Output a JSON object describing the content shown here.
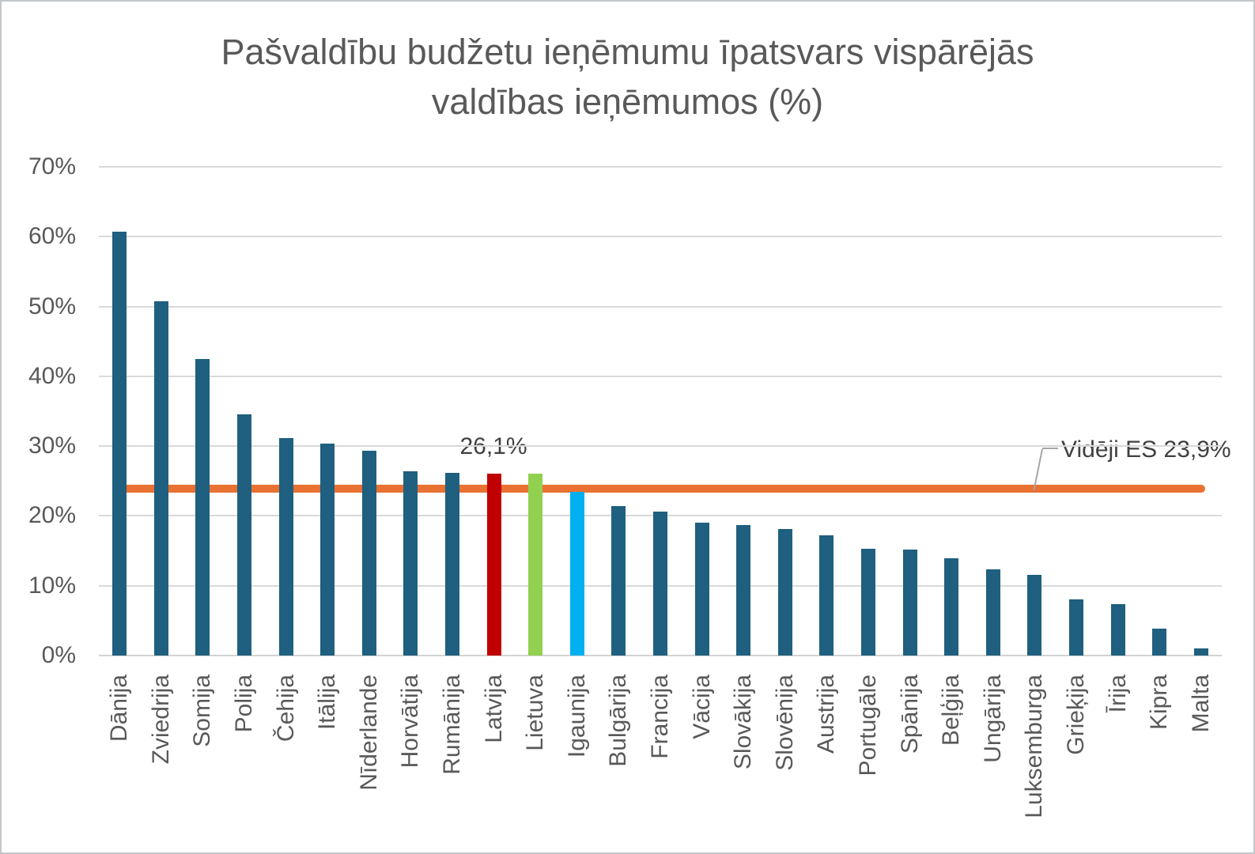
{
  "title": {
    "line1": "Pašvaldību budžetu ieņēmumu īpatsvars vispārējās",
    "line2": "valdības ieņēmumos (%)"
  },
  "chart_data": {
    "type": "bar",
    "title": "Pašvaldību budžetu ieņēmumu īpatsvars vispārējās valdības ieņēmumos (%)",
    "xlabel": "",
    "ylabel": "",
    "ylim": [
      0,
      70
    ],
    "y_ticks": [
      "0%",
      "10%",
      "20%",
      "30%",
      "40%",
      "50%",
      "60%",
      "70%"
    ],
    "grid": true,
    "legend": "none",
    "categories": [
      "Dānija",
      "Zviedrija",
      "Somija",
      "Polija",
      "Čehija",
      "Itālija",
      "Nīderlande",
      "Horvātija",
      "Rumānija",
      "Latvija",
      "Lietuva",
      "Igaunija",
      "Bulgārija",
      "Francija",
      "Vācija",
      "Slovākija",
      "Slovēnija",
      "Austrija",
      "Portugāle",
      "Spānija",
      "Beļģija",
      "Ungārija",
      "Luksemburga",
      "Grieķija",
      "Īrija",
      "Kipra",
      "Malta"
    ],
    "values": [
      60.7,
      50.8,
      42.5,
      34.6,
      31.1,
      30.3,
      29.3,
      26.4,
      26.2,
      26.1,
      26.0,
      23.4,
      21.4,
      20.6,
      19.0,
      18.7,
      18.1,
      17.2,
      15.3,
      15.2,
      13.9,
      12.4,
      11.5,
      8.0,
      7.4,
      3.9,
      1.0
    ],
    "bar_label": {
      "category": "Latvija",
      "text": "26,1%"
    },
    "average_line": {
      "value": 23.9,
      "label": "Vidēji ES 23,9%"
    },
    "highlight_colors": {
      "Latvija": "#C00000",
      "Lietuva": "#92D050",
      "Igaunija": "#00B0F0"
    }
  },
  "colors": {
    "bar_default": "#1F5F7F",
    "latvija_bar": "#C00000",
    "lietuva_bar": "#92D050",
    "igaunija_bar": "#00B0F0",
    "average_line": "#E97132",
    "gridline": "#D9D9D9",
    "axis_text": "#595959",
    "annotation_text": "#404040",
    "callout_line": "#A6A6A6"
  }
}
